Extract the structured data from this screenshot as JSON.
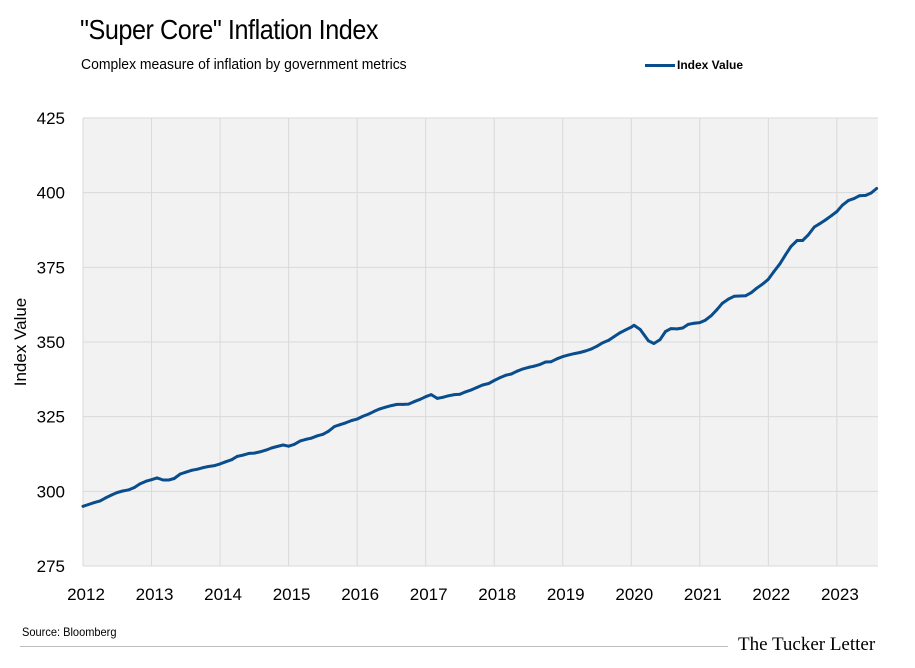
{
  "title": "\"Super Core\" Inflation Index",
  "subtitle": "Complex measure of inflation by government metrics",
  "legend": {
    "label": "Index Value",
    "position": "top-right"
  },
  "source": "Source: Bloomberg",
  "brand": "The Tucker Letter",
  "colors": {
    "line": "#0a4d8c",
    "plot_background": "#f2f2f2",
    "gridline": "#d9d9d9"
  },
  "chart_data": {
    "type": "line",
    "title": "\"Super Core\" Inflation Index",
    "subtitle": "Complex measure of inflation by government metrics",
    "xlabel": "",
    "ylabel": "Index Value",
    "xlim": [
      2012,
      2023.6
    ],
    "ylim": [
      275,
      425
    ],
    "x_ticks": [
      2012,
      2013,
      2014,
      2015,
      2016,
      2017,
      2018,
      2019,
      2020,
      2021,
      2022,
      2023
    ],
    "y_ticks": [
      275,
      300,
      325,
      350,
      375,
      400,
      425
    ],
    "grid": true,
    "legend_placement": "top-right",
    "series": [
      {
        "name": "Index Value",
        "color": "#0a4d8c",
        "points": [
          [
            2012.0,
            295.0
          ],
          [
            2012.08,
            295.6
          ],
          [
            2012.17,
            296.3
          ],
          [
            2012.25,
            296.8
          ],
          [
            2012.33,
            297.8
          ],
          [
            2012.42,
            298.8
          ],
          [
            2012.5,
            299.6
          ],
          [
            2012.58,
            300.1
          ],
          [
            2012.67,
            300.5
          ],
          [
            2012.75,
            301.3
          ],
          [
            2012.83,
            302.5
          ],
          [
            2012.92,
            303.4
          ],
          [
            2013.0,
            303.9
          ],
          [
            2013.08,
            304.5
          ],
          [
            2013.17,
            303.8
          ],
          [
            2013.25,
            303.8
          ],
          [
            2013.33,
            304.3
          ],
          [
            2013.42,
            305.8
          ],
          [
            2013.5,
            306.4
          ],
          [
            2013.58,
            307.0
          ],
          [
            2013.67,
            307.4
          ],
          [
            2013.75,
            307.9
          ],
          [
            2013.83,
            308.3
          ],
          [
            2013.92,
            308.6
          ],
          [
            2014.0,
            309.2
          ],
          [
            2014.08,
            309.9
          ],
          [
            2014.17,
            310.6
          ],
          [
            2014.25,
            311.7
          ],
          [
            2014.33,
            312.1
          ],
          [
            2014.42,
            312.7
          ],
          [
            2014.5,
            312.8
          ],
          [
            2014.58,
            313.2
          ],
          [
            2014.67,
            313.8
          ],
          [
            2014.75,
            314.5
          ],
          [
            2014.83,
            315.0
          ],
          [
            2014.92,
            315.5
          ],
          [
            2015.0,
            315.1
          ],
          [
            2015.08,
            315.7
          ],
          [
            2015.17,
            316.9
          ],
          [
            2015.25,
            317.4
          ],
          [
            2015.33,
            317.8
          ],
          [
            2015.42,
            318.6
          ],
          [
            2015.5,
            319.1
          ],
          [
            2015.58,
            320.1
          ],
          [
            2015.67,
            321.7
          ],
          [
            2015.75,
            322.3
          ],
          [
            2015.83,
            322.9
          ],
          [
            2015.92,
            323.7
          ],
          [
            2016.0,
            324.2
          ],
          [
            2016.08,
            325.1
          ],
          [
            2016.17,
            325.9
          ],
          [
            2016.25,
            326.8
          ],
          [
            2016.33,
            327.6
          ],
          [
            2016.42,
            328.2
          ],
          [
            2016.5,
            328.7
          ],
          [
            2016.58,
            329.1
          ],
          [
            2016.67,
            329.1
          ],
          [
            2016.75,
            329.2
          ],
          [
            2016.83,
            330.0
          ],
          [
            2016.92,
            330.8
          ],
          [
            2017.0,
            331.7
          ],
          [
            2017.08,
            332.4
          ],
          [
            2017.17,
            331.1
          ],
          [
            2017.25,
            331.5
          ],
          [
            2017.33,
            332.0
          ],
          [
            2017.42,
            332.4
          ],
          [
            2017.5,
            332.5
          ],
          [
            2017.58,
            333.3
          ],
          [
            2017.67,
            334.0
          ],
          [
            2017.75,
            334.8
          ],
          [
            2017.83,
            335.6
          ],
          [
            2017.92,
            336.1
          ],
          [
            2018.0,
            337.1
          ],
          [
            2018.08,
            338.0
          ],
          [
            2018.17,
            338.9
          ],
          [
            2018.25,
            339.3
          ],
          [
            2018.33,
            340.2
          ],
          [
            2018.42,
            341.0
          ],
          [
            2018.5,
            341.5
          ],
          [
            2018.58,
            341.9
          ],
          [
            2018.67,
            342.5
          ],
          [
            2018.75,
            343.3
          ],
          [
            2018.83,
            343.4
          ],
          [
            2018.92,
            344.4
          ],
          [
            2019.0,
            345.1
          ],
          [
            2019.08,
            345.6
          ],
          [
            2019.17,
            346.1
          ],
          [
            2019.25,
            346.5
          ],
          [
            2019.33,
            347.0
          ],
          [
            2019.42,
            347.7
          ],
          [
            2019.5,
            348.6
          ],
          [
            2019.58,
            349.7
          ],
          [
            2019.67,
            350.6
          ],
          [
            2019.75,
            351.8
          ],
          [
            2019.83,
            353.0
          ],
          [
            2019.92,
            354.1
          ],
          [
            2020.0,
            355.0
          ],
          [
            2020.04,
            355.6
          ],
          [
            2020.13,
            354.2
          ],
          [
            2020.25,
            350.4
          ],
          [
            2020.33,
            349.5
          ],
          [
            2020.42,
            350.8
          ],
          [
            2020.5,
            353.5
          ],
          [
            2020.58,
            354.5
          ],
          [
            2020.67,
            354.4
          ],
          [
            2020.75,
            354.7
          ],
          [
            2020.83,
            355.9
          ],
          [
            2020.92,
            356.3
          ],
          [
            2021.0,
            356.5
          ],
          [
            2021.08,
            357.3
          ],
          [
            2021.17,
            358.9
          ],
          [
            2021.25,
            360.8
          ],
          [
            2021.33,
            363.0
          ],
          [
            2021.42,
            364.4
          ],
          [
            2021.5,
            365.3
          ],
          [
            2021.58,
            365.4
          ],
          [
            2021.67,
            365.5
          ],
          [
            2021.75,
            366.5
          ],
          [
            2021.83,
            368.0
          ],
          [
            2021.92,
            369.5
          ],
          [
            2022.0,
            371.0
          ],
          [
            2022.08,
            373.5
          ],
          [
            2022.17,
            376.2
          ],
          [
            2022.25,
            379.2
          ],
          [
            2022.33,
            382.0
          ],
          [
            2022.42,
            384.0
          ],
          [
            2022.5,
            384.0
          ],
          [
            2022.58,
            385.8
          ],
          [
            2022.67,
            388.5
          ],
          [
            2022.75,
            389.6
          ],
          [
            2022.83,
            390.8
          ],
          [
            2022.92,
            392.3
          ],
          [
            2023.0,
            393.7
          ],
          [
            2023.08,
            395.8
          ],
          [
            2023.17,
            397.4
          ],
          [
            2023.25,
            398.0
          ],
          [
            2023.33,
            399.0
          ],
          [
            2023.42,
            399.1
          ],
          [
            2023.5,
            399.9
          ],
          [
            2023.58,
            401.4
          ]
        ]
      }
    ]
  }
}
